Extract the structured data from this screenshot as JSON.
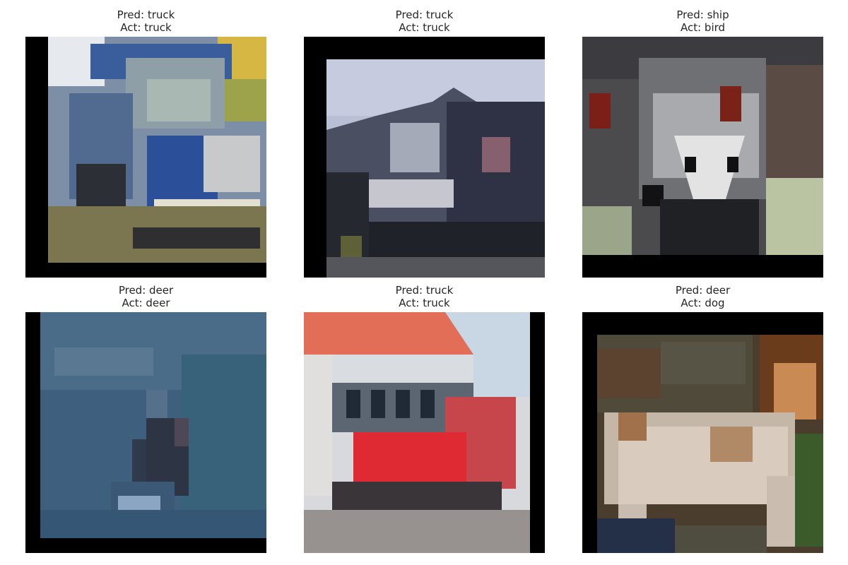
{
  "panels": [
    {
      "pred": "Pred: truck",
      "act": "Act: truck"
    },
    {
      "pred": "Pred: truck",
      "act": "Act: truck"
    },
    {
      "pred": "Pred: ship",
      "act": "Act: bird"
    },
    {
      "pred": "Pred: deer",
      "act": "Act: deer"
    },
    {
      "pred": "Pred: truck",
      "act": "Act: truck"
    },
    {
      "pred": "Pred: deer",
      "act": "Act: dog"
    }
  ]
}
